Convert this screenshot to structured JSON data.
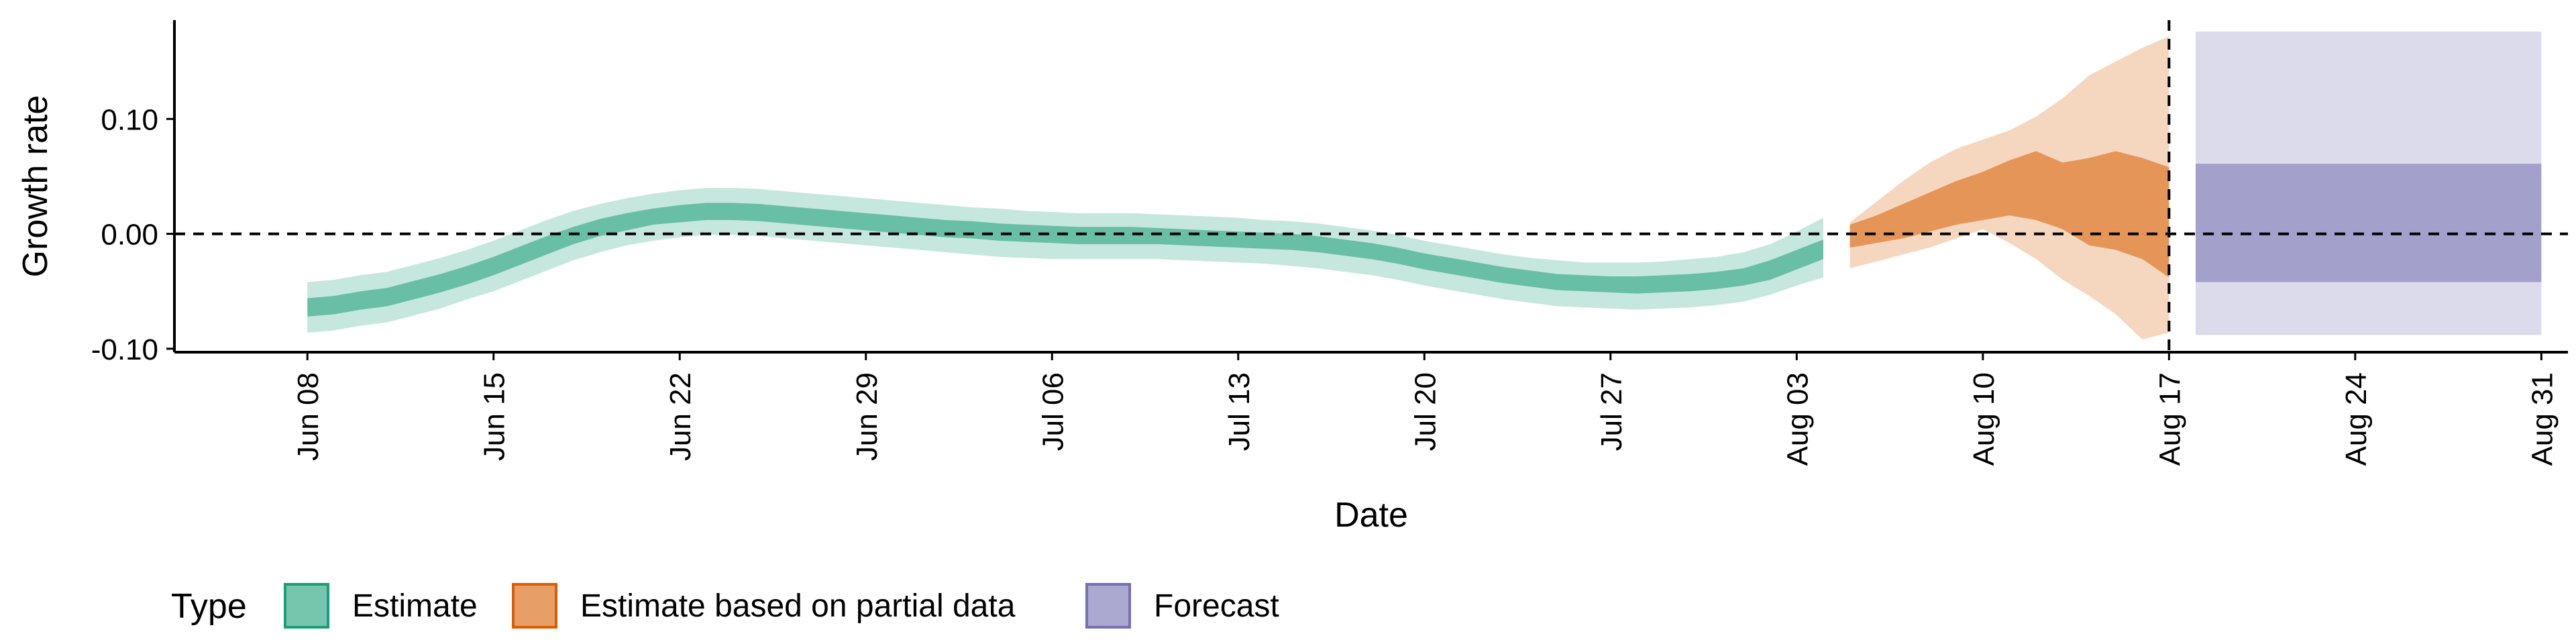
{
  "chart_data": {
    "type": "area",
    "xlabel": "Date",
    "ylabel": "Growth rate",
    "x_range": [
      "2020-06-03",
      "2020-09-01"
    ],
    "ylim": [
      -0.103,
      0.186
    ],
    "x_ticks": [
      {
        "date": "2020-06-08",
        "label": "Jun 08"
      },
      {
        "date": "2020-06-15",
        "label": "Jun 15"
      },
      {
        "date": "2020-06-22",
        "label": "Jun 22"
      },
      {
        "date": "2020-06-29",
        "label": "Jun 29"
      },
      {
        "date": "2020-07-06",
        "label": "Jul 06"
      },
      {
        "date": "2020-07-13",
        "label": "Jul 13"
      },
      {
        "date": "2020-07-20",
        "label": "Jul 20"
      },
      {
        "date": "2020-07-27",
        "label": "Jul 27"
      },
      {
        "date": "2020-08-03",
        "label": "Aug 03"
      },
      {
        "date": "2020-08-10",
        "label": "Aug 10"
      },
      {
        "date": "2020-08-17",
        "label": "Aug 17"
      },
      {
        "date": "2020-08-24",
        "label": "Aug 24"
      },
      {
        "date": "2020-08-31",
        "label": "Aug 31"
      }
    ],
    "y_ticks": [
      {
        "value": 0.1,
        "label": "0.10"
      },
      {
        "value": 0.0,
        "label": "0.00"
      },
      {
        "value": -0.1,
        "label": "-0.10"
      }
    ],
    "reference_lines": {
      "horizontal_y": 0.0,
      "vertical_date": "2020-08-17"
    },
    "legend": {
      "title": "Type",
      "position": "bottom-left",
      "entries": [
        "Estimate",
        "Estimate based on partial data",
        "Forecast"
      ]
    },
    "colors": {
      "Estimate": {
        "fill": "#1b9e77",
        "border": "#1b9e77"
      },
      "Estimate based on partial data": {
        "fill": "#d95f02",
        "border": "#d95f02"
      },
      "Forecast": {
        "fill": "#7570b3",
        "border": "#7570b3"
      }
    },
    "series": [
      {
        "name": "Estimate",
        "x": [
          "2020-06-08",
          "2020-06-09",
          "2020-06-10",
          "2020-06-11",
          "2020-06-12",
          "2020-06-13",
          "2020-06-14",
          "2020-06-15",
          "2020-06-16",
          "2020-06-17",
          "2020-06-18",
          "2020-06-19",
          "2020-06-20",
          "2020-06-21",
          "2020-06-22",
          "2020-06-23",
          "2020-06-24",
          "2020-06-25",
          "2020-06-26",
          "2020-06-27",
          "2020-06-28",
          "2020-06-29",
          "2020-06-30",
          "2020-07-01",
          "2020-07-02",
          "2020-07-03",
          "2020-07-04",
          "2020-07-05",
          "2020-07-06",
          "2020-07-07",
          "2020-07-08",
          "2020-07-09",
          "2020-07-10",
          "2020-07-11",
          "2020-07-12",
          "2020-07-13",
          "2020-07-14",
          "2020-07-15",
          "2020-07-16",
          "2020-07-17",
          "2020-07-18",
          "2020-07-19",
          "2020-07-20",
          "2020-07-21",
          "2020-07-22",
          "2020-07-23",
          "2020-07-24",
          "2020-07-25",
          "2020-07-26",
          "2020-07-27",
          "2020-07-28",
          "2020-07-29",
          "2020-07-30",
          "2020-07-31",
          "2020-08-01",
          "2020-08-02",
          "2020-08-03",
          "2020-08-04"
        ],
        "median": [
          -0.064,
          -0.062,
          -0.058,
          -0.055,
          -0.049,
          -0.043,
          -0.036,
          -0.028,
          -0.019,
          -0.01,
          -0.002,
          0.005,
          0.01,
          0.015,
          0.017,
          0.019,
          0.019,
          0.018,
          0.016,
          0.014,
          0.012,
          0.01,
          0.008,
          0.006,
          0.004,
          0.003,
          0.001,
          0.0,
          -0.001,
          -0.002,
          -0.002,
          -0.002,
          -0.002,
          -0.003,
          -0.004,
          -0.005,
          -0.006,
          -0.007,
          -0.009,
          -0.012,
          -0.015,
          -0.019,
          -0.024,
          -0.028,
          -0.032,
          -0.036,
          -0.039,
          -0.042,
          -0.043,
          -0.044,
          -0.044,
          -0.043,
          -0.042,
          -0.04,
          -0.037,
          -0.031,
          -0.022,
          -0.013
        ],
        "lower_50": [
          -0.072,
          -0.07,
          -0.066,
          -0.063,
          -0.057,
          -0.051,
          -0.044,
          -0.036,
          -0.027,
          -0.018,
          -0.009,
          -0.002,
          0.003,
          0.008,
          0.01,
          0.012,
          0.012,
          0.011,
          0.009,
          0.007,
          0.005,
          0.003,
          0.001,
          -0.001,
          -0.003,
          -0.004,
          -0.006,
          -0.007,
          -0.008,
          -0.009,
          -0.009,
          -0.009,
          -0.009,
          -0.01,
          -0.011,
          -0.012,
          -0.013,
          -0.014,
          -0.016,
          -0.019,
          -0.022,
          -0.026,
          -0.031,
          -0.035,
          -0.039,
          -0.043,
          -0.046,
          -0.049,
          -0.05,
          -0.051,
          -0.052,
          -0.051,
          -0.05,
          -0.048,
          -0.045,
          -0.04,
          -0.031,
          -0.022
        ],
        "upper_50": [
          -0.056,
          -0.054,
          -0.05,
          -0.047,
          -0.041,
          -0.035,
          -0.028,
          -0.02,
          -0.011,
          -0.002,
          0.006,
          0.013,
          0.018,
          0.022,
          0.025,
          0.027,
          0.027,
          0.026,
          0.024,
          0.022,
          0.02,
          0.018,
          0.016,
          0.014,
          0.012,
          0.011,
          0.009,
          0.008,
          0.007,
          0.006,
          0.006,
          0.006,
          0.005,
          0.004,
          0.003,
          0.002,
          0.001,
          0.0,
          -0.002,
          -0.005,
          -0.008,
          -0.012,
          -0.017,
          -0.021,
          -0.025,
          -0.029,
          -0.032,
          -0.035,
          -0.036,
          -0.037,
          -0.037,
          -0.036,
          -0.035,
          -0.033,
          -0.03,
          -0.023,
          -0.014,
          -0.005
        ],
        "lower_90": [
          -0.086,
          -0.084,
          -0.08,
          -0.077,
          -0.071,
          -0.065,
          -0.057,
          -0.05,
          -0.041,
          -0.032,
          -0.023,
          -0.016,
          -0.01,
          -0.006,
          -0.003,
          -0.001,
          -0.001,
          -0.002,
          -0.004,
          -0.006,
          -0.008,
          -0.01,
          -0.012,
          -0.014,
          -0.016,
          -0.018,
          -0.02,
          -0.021,
          -0.022,
          -0.022,
          -0.022,
          -0.022,
          -0.022,
          -0.023,
          -0.024,
          -0.025,
          -0.026,
          -0.028,
          -0.03,
          -0.033,
          -0.036,
          -0.04,
          -0.045,
          -0.049,
          -0.053,
          -0.057,
          -0.06,
          -0.063,
          -0.064,
          -0.065,
          -0.066,
          -0.065,
          -0.064,
          -0.062,
          -0.059,
          -0.053,
          -0.045,
          -0.038
        ],
        "upper_90": [
          -0.042,
          -0.04,
          -0.036,
          -0.033,
          -0.027,
          -0.021,
          -0.014,
          -0.006,
          0.003,
          0.012,
          0.02,
          0.026,
          0.031,
          0.035,
          0.038,
          0.04,
          0.04,
          0.039,
          0.037,
          0.035,
          0.033,
          0.031,
          0.029,
          0.027,
          0.025,
          0.023,
          0.022,
          0.02,
          0.019,
          0.018,
          0.018,
          0.018,
          0.017,
          0.016,
          0.015,
          0.014,
          0.012,
          0.011,
          0.009,
          0.006,
          0.003,
          -0.001,
          -0.006,
          -0.01,
          -0.014,
          -0.018,
          -0.021,
          -0.023,
          -0.025,
          -0.025,
          -0.025,
          -0.024,
          -0.022,
          -0.02,
          -0.016,
          -0.009,
          0.002,
          0.014
        ]
      },
      {
        "name": "Estimate based on partial data",
        "x": [
          "2020-08-05",
          "2020-08-06",
          "2020-08-07",
          "2020-08-08",
          "2020-08-09",
          "2020-08-10",
          "2020-08-11",
          "2020-08-12",
          "2020-08-13",
          "2020-08-14",
          "2020-08-15",
          "2020-08-16",
          "2020-08-17"
        ],
        "lower_50": [
          -0.012,
          -0.008,
          -0.004,
          0.002,
          0.008,
          0.012,
          0.016,
          0.012,
          0.004,
          -0.01,
          -0.014,
          -0.022,
          -0.038
        ],
        "upper_50": [
          0.008,
          0.016,
          0.026,
          0.036,
          0.046,
          0.054,
          0.064,
          0.072,
          0.062,
          0.066,
          0.072,
          0.066,
          0.058
        ],
        "lower_90": [
          -0.03,
          -0.024,
          -0.018,
          -0.012,
          -0.004,
          0.004,
          -0.008,
          -0.022,
          -0.04,
          -0.054,
          -0.07,
          -0.092,
          -0.086
        ],
        "upper_90": [
          0.01,
          0.028,
          0.046,
          0.062,
          0.074,
          0.082,
          0.09,
          0.102,
          0.118,
          0.138,
          0.15,
          0.162,
          0.172
        ]
      },
      {
        "name": "Forecast",
        "x": [
          "2020-08-18",
          "2020-08-31"
        ],
        "lower_50": [
          -0.042,
          -0.042
        ],
        "upper_50": [
          0.061,
          0.061
        ],
        "lower_90": [
          -0.088,
          -0.088
        ],
        "upper_90": [
          0.176,
          0.176
        ]
      }
    ]
  }
}
